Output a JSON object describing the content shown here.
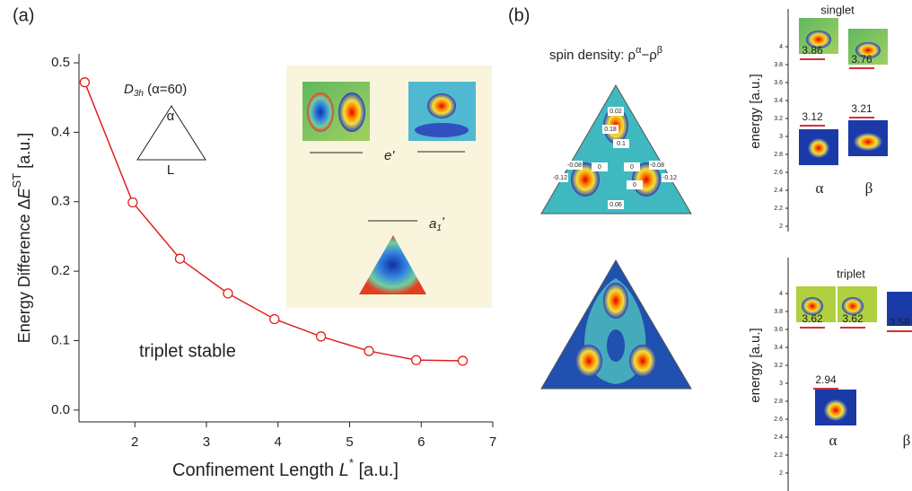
{
  "chart_data": [
    {
      "type": "line",
      "x": [
        1.3,
        1.97,
        2.63,
        3.3,
        3.95,
        4.6,
        5.27,
        5.93,
        6.58
      ],
      "values": [
        0.472,
        0.299,
        0.218,
        0.168,
        0.131,
        0.106,
        0.085,
        0.072,
        0.071
      ],
      "color": "#e02020",
      "xlim": [
        1.22,
        7
      ],
      "ylim": [
        -0.017,
        0.5
      ],
      "xticks": [
        2,
        3,
        4,
        5,
        6,
        7
      ],
      "yticks": [
        {
          "value": 0,
          "label": "0.0"
        },
        0.1,
        0.2,
        0.3,
        0.4,
        0.5
      ],
      "xlabel": [
        "Confinement Length ",
        "L",
        "*",
        " [a.u.]"
      ],
      "ylabel": [
        "Energy Difference  Δ",
        "E",
        "ST",
        " [a.u.]"
      ],
      "annotations": {
        "panel": "(a)",
        "symmetry": [
          "D",
          "3h",
          " (α=60)"
        ],
        "angle": "α",
        "side": "L",
        "note": "triplet stable",
        "e_label": "e'",
        "a_label": [
          "a",
          "1",
          "'"
        ]
      }
    },
    {
      "type": "levels",
      "title": "singlet",
      "ylabel": "energy [a.u.]",
      "categories": [
        "α",
        "β"
      ],
      "levels": [
        [
          3.86,
          3.12
        ],
        [
          3.76,
          3.21
        ]
      ],
      "color": "#d03040",
      "ylim": [
        1.94,
        4.42
      ],
      "yticks": [
        2,
        2.2,
        2.4,
        2.6,
        2.8,
        3,
        3.2,
        3.4,
        3.6,
        3.8,
        4
      ]
    },
    {
      "type": "levels",
      "title": "triplet",
      "ylabel": "energy [a.u.]",
      "categories": [
        "α",
        "β"
      ],
      "levels": [
        [
          3.62,
          3.62,
          2.94
        ],
        [
          3.58
        ]
      ],
      "color": "#d03040",
      "ylim": [
        1.8,
        4.4
      ],
      "yticks": [
        2,
        2.2,
        2.4,
        2.6,
        2.8,
        3,
        3.2,
        3.4,
        3.6,
        3.8,
        4
      ]
    }
  ],
  "panel_b": {
    "label": "(b)",
    "title": [
      "spin density: ρ",
      "α",
      "−ρ",
      "β"
    ],
    "spin_labels": [
      "0.02",
      "0.18",
      "0.1",
      "-0.08",
      "-0.12",
      "0",
      "0",
      "-0.08",
      "-0.12",
      "0",
      "0.06"
    ]
  }
}
